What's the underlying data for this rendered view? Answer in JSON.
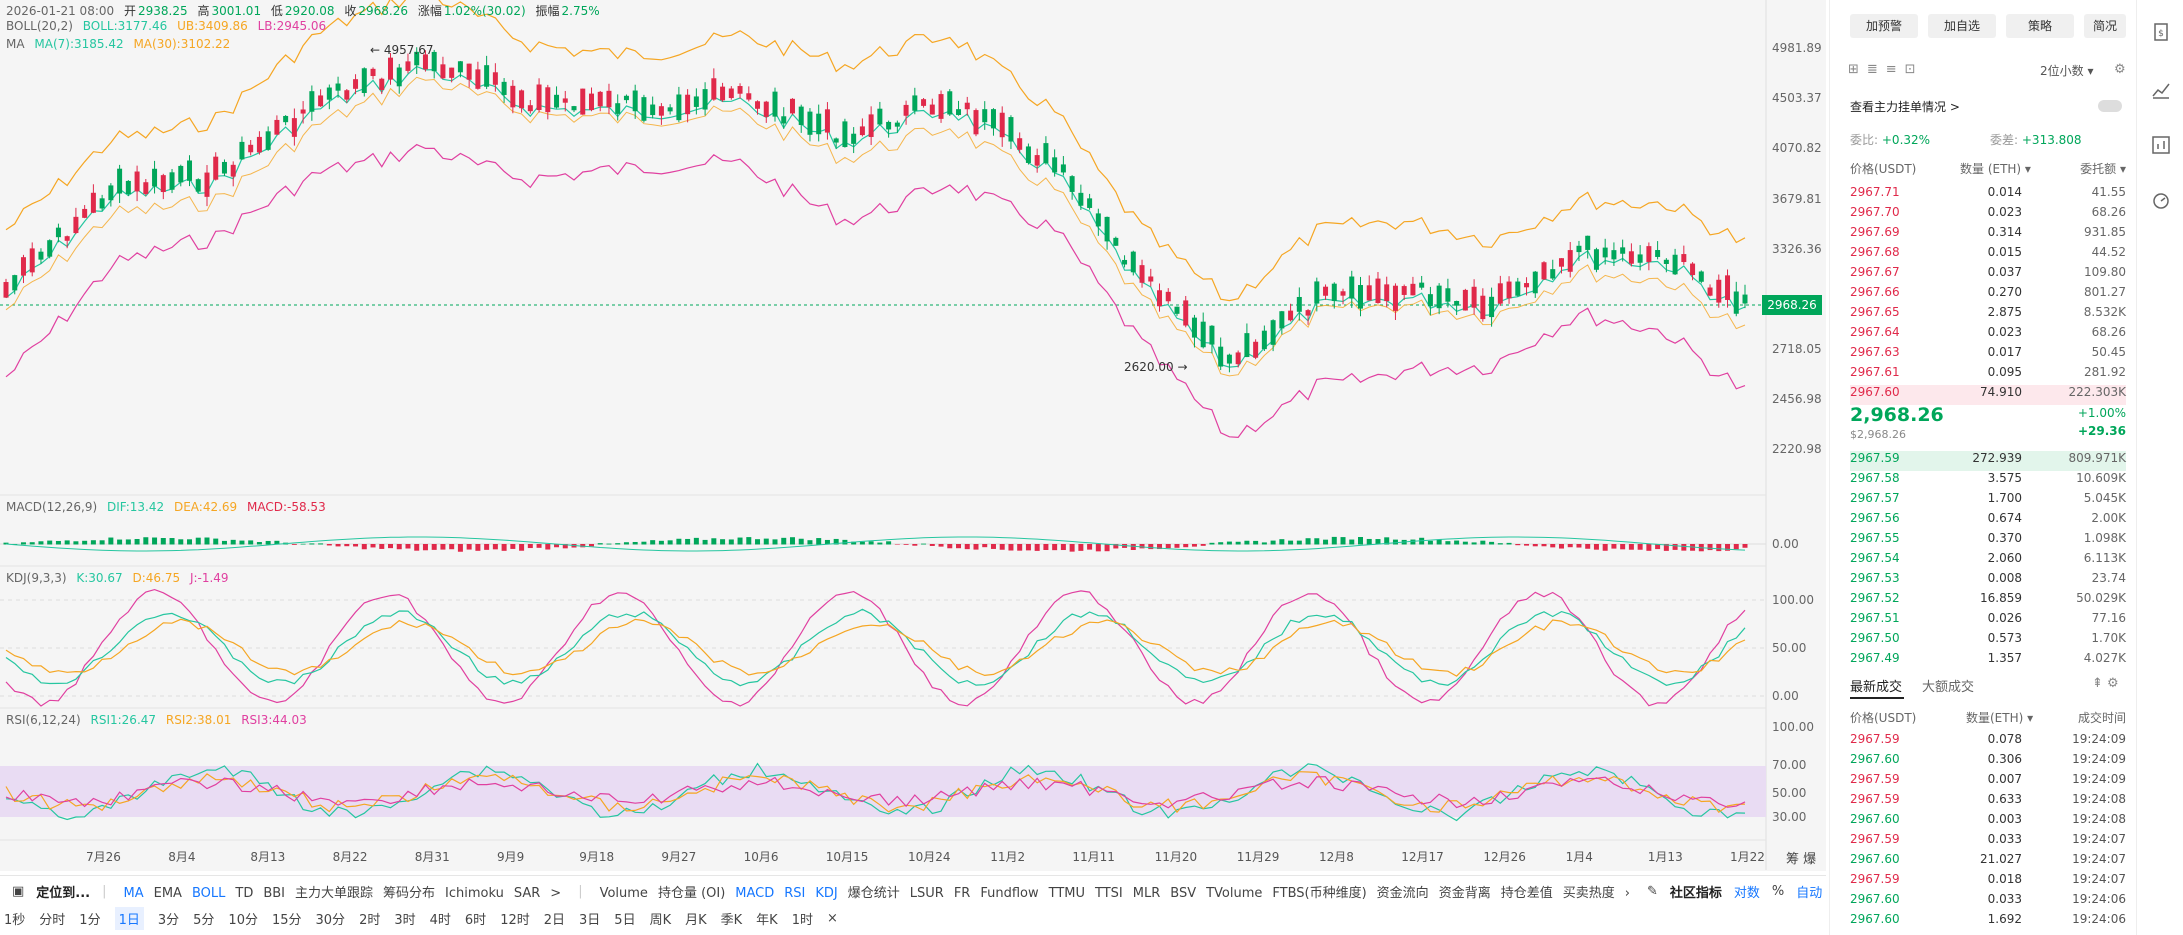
{
  "header": {
    "datetime": "2026-01-21 08:00",
    "open_label": "开",
    "open": "2938.25",
    "high_label": "高",
    "high": "3001.01",
    "low_label": "低",
    "low": "2920.08",
    "close_label": "收",
    "close": "2968.26",
    "change_label": "涨幅",
    "change": "1.02%(30.02)",
    "amp_label": "振幅",
    "amp": "2.75%"
  },
  "boll": {
    "name": "BOLL(20,2)",
    "boll": "BOLL:3177.46",
    "ub": "UB:3409.86",
    "lb": "LB:2945.06"
  },
  "ma": {
    "name": "MA",
    "ma7": "MA(7):3185.42",
    "ma30": "MA(30):3102.22"
  },
  "macd": {
    "name": "MACD(12,26,9)",
    "dif": "DIF:13.42",
    "dea": "DEA:42.69",
    "macd": "MACD:-58.53"
  },
  "kdj": {
    "name": "KDJ(9,3,3)",
    "k": "K:30.67",
    "d": "D:46.75",
    "j": "J:-1.49"
  },
  "rsi": {
    "name": "RSI(6,12,24)",
    "r1": "RSI1:26.47",
    "r2": "RSI2:38.01",
    "r3": "RSI3:44.03"
  },
  "price_axis": [
    "4981.89",
    "4503.37",
    "4070.82",
    "3679.81",
    "3326.36",
    "2718.05",
    "2456.98",
    "2220.98"
  ],
  "current_price_tag": "2968.26",
  "macd_axis": [
    "0.00"
  ],
  "kdj_axis": [
    "100.00",
    "50.00",
    "0.00"
  ],
  "rsi_axis": [
    "100.00",
    "70.00",
    "50.00",
    "30.00"
  ],
  "annotations": {
    "high": "← 4957.67",
    "low": "2620.00 →"
  },
  "date_axis": [
    "7月26",
    "8月4",
    "8月13",
    "8月22",
    "8月31",
    "9月9",
    "9月18",
    "9月27",
    "10月6",
    "10月15",
    "10月24",
    "11月2",
    "11月11",
    "11月20",
    "11月29",
    "12月8",
    "12月17",
    "12月26",
    "1月4",
    "1月13",
    "1月22"
  ],
  "date_axis_right": "筹 爆",
  "bottom_bar": {
    "locate": "定位到...",
    "main_indicators": [
      "MA",
      "EMA",
      "BOLL",
      "TD",
      "BBI",
      "主力大单跟踪",
      "筹码分布",
      "Ichimoku",
      "SAR",
      ">"
    ],
    "sub_indicators": [
      "Volume",
      "持仓量 (OI)",
      "MACD",
      "RSI",
      "KDJ",
      "爆仓统计",
      "LSUR",
      "FR",
      "Fundflow",
      "TTMU",
      "TTSI",
      "MLR",
      "BSV",
      "TVolume",
      "FTBS(币种维度)",
      "资金流向",
      "资金背离",
      "持仓差值",
      "买卖热度",
      "›"
    ],
    "community": "社区指标",
    "opposite": "对数",
    "percent": "%",
    "auto": "自动"
  },
  "timeframes": [
    "1秒",
    "分时",
    "1分",
    "1日",
    "3分",
    "5分",
    "10分",
    "15分",
    "30分",
    "2时",
    "3时",
    "4时",
    "6时",
    "12时",
    "2日",
    "3日",
    "5日",
    "周K",
    "月K",
    "季K",
    "年K",
    "1时",
    "×"
  ],
  "active_timeframe": "1日",
  "side": {
    "buttons": [
      "加预警",
      "加自选",
      "策略",
      "简况"
    ],
    "precision": "2位小数 ▾",
    "whale_link": "查看主力挂单情况 >",
    "ratio_label": "委比:",
    "ratio_value": "+0.32%",
    "diff_label": "委差:",
    "diff_value": "+313.808",
    "ob_headers": [
      "价格(USDT)",
      "数量 (ETH) ▾",
      "委托额 ▾"
    ],
    "asks": [
      [
        "2967.71",
        "0.014",
        "41.55"
      ],
      [
        "2967.70",
        "0.023",
        "68.26"
      ],
      [
        "2967.69",
        "0.314",
        "931.85"
      ],
      [
        "2967.68",
        "0.015",
        "44.52"
      ],
      [
        "2967.67",
        "0.037",
        "109.80"
      ],
      [
        "2967.66",
        "0.270",
        "801.27"
      ],
      [
        "2967.65",
        "2.875",
        "8.532K"
      ],
      [
        "2967.64",
        "0.023",
        "68.26"
      ],
      [
        "2967.63",
        "0.017",
        "50.45"
      ],
      [
        "2967.61",
        "0.095",
        "281.92"
      ],
      [
        "2967.60",
        "74.910",
        "222.303K"
      ]
    ],
    "last_price": "2,968.26",
    "last_price_sub": "$2,968.26",
    "last_change_pct": "+1.00%",
    "last_change_abs": "+29.36",
    "bids": [
      [
        "2967.59",
        "272.939",
        "809.971K"
      ],
      [
        "2967.58",
        "3.575",
        "10.609K"
      ],
      [
        "2967.57",
        "1.700",
        "5.045K"
      ],
      [
        "2967.56",
        "0.674",
        "2.00K"
      ],
      [
        "2967.55",
        "0.370",
        "1.098K"
      ],
      [
        "2967.54",
        "2.060",
        "6.113K"
      ],
      [
        "2967.53",
        "0.008",
        "23.74"
      ],
      [
        "2967.52",
        "16.859",
        "50.029K"
      ],
      [
        "2967.51",
        "0.026",
        "77.16"
      ],
      [
        "2967.50",
        "0.573",
        "1.70K"
      ],
      [
        "2967.49",
        "1.357",
        "4.027K"
      ]
    ],
    "trade_tabs": [
      "最新成交",
      "大额成交"
    ],
    "trade_headers": [
      "价格(USDT)",
      "数量(ETH) ▾",
      "成交时间"
    ],
    "trades": [
      [
        "2967.59",
        "0.078",
        "19:24:09",
        "red"
      ],
      [
        "2967.60",
        "0.306",
        "19:24:09",
        "green"
      ],
      [
        "2967.59",
        "0.007",
        "19:24:09",
        "red"
      ],
      [
        "2967.59",
        "0.633",
        "19:24:08",
        "red"
      ],
      [
        "2967.60",
        "0.003",
        "19:24:08",
        "green"
      ],
      [
        "2967.59",
        "0.033",
        "19:24:07",
        "red"
      ],
      [
        "2967.60",
        "21.027",
        "19:24:07",
        "green"
      ],
      [
        "2967.59",
        "0.018",
        "19:24:07",
        "red"
      ],
      [
        "2967.60",
        "0.033",
        "19:24:06",
        "green"
      ],
      [
        "2967.60",
        "1.692",
        "19:24:06",
        "green"
      ]
    ]
  },
  "colors": {
    "up": "#00a65a",
    "down": "#e0294a",
    "accent": "#1677ff",
    "ub": "#f5a623",
    "lb": "#e040a0",
    "mid": "#26c6a0"
  }
}
